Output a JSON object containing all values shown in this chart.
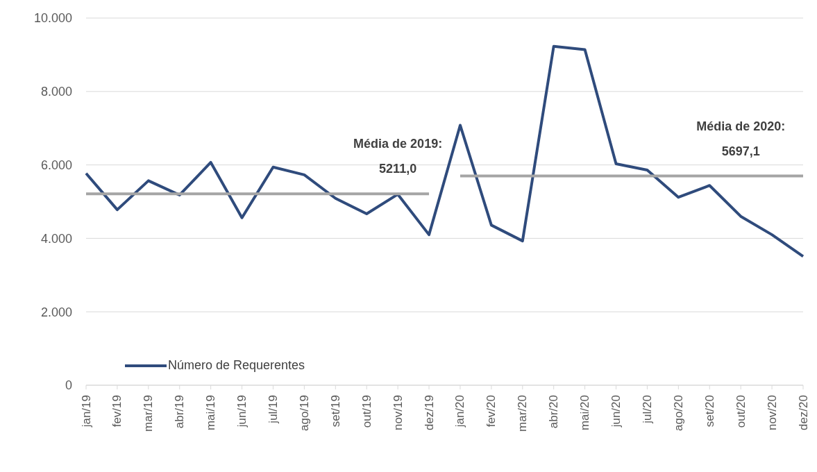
{
  "chart_data": {
    "type": "line",
    "categories": [
      "jan/19",
      "fev/19",
      "mar/19",
      "abr/19",
      "mai/19",
      "jun/19",
      "jul/19",
      "ago/19",
      "set/19",
      "out/19",
      "nov/19",
      "dez/19",
      "jan/20",
      "fev/20",
      "mar/20",
      "abr/20",
      "mai/20",
      "jun/20",
      "jul/20",
      "ago/20",
      "set/20",
      "out/20",
      "nov/20",
      "dez/20"
    ],
    "series": [
      {
        "name": "Número de Requerentes",
        "color": "#2f4b7c",
        "values": [
          5770,
          4780,
          5570,
          5180,
          6070,
          4560,
          5940,
          5730,
          5090,
          4670,
          5200,
          4100,
          7080,
          4360,
          3930,
          9230,
          9140,
          6030,
          5860,
          5120,
          5440,
          4600,
          4100,
          3510
        ]
      },
      {
        "color": "#a5a5a5",
        "values": [
          5211,
          5211,
          5211,
          5211,
          5211,
          5211,
          5211,
          5211,
          5211,
          5211,
          5211,
          5211,
          null,
          null,
          null,
          null,
          null,
          null,
          null,
          null,
          null,
          null,
          null,
          null
        ]
      },
      {
        "color": "#a5a5a5",
        "values": [
          null,
          null,
          null,
          null,
          null,
          null,
          null,
          null,
          null,
          null,
          null,
          null,
          5697.1,
          5697.1,
          5697.1,
          5697.1,
          5697.1,
          5697.1,
          5697.1,
          5697.1,
          5697.1,
          5697.1,
          5697.1,
          5697.1
        ]
      }
    ],
    "ylim": [
      0,
      10000
    ],
    "yticks": [
      0,
      {
        "value": 2000,
        "label": "2.000"
      },
      {
        "value": 4000,
        "label": "4.000"
      },
      {
        "value": 6000,
        "label": "6.000"
      },
      {
        "value": 8000,
        "label": "8.000"
      },
      {
        "value": 10000,
        "label": "10.000"
      }
    ],
    "grid": "y",
    "legend": "bottom left",
    "marker": "none",
    "line_style": "solid",
    "annotations": [
      {
        "text": "Média de 2019:\n5211,0",
        "x": "nov/19",
        "y": 5211
      },
      {
        "text": "Média de 2020:\n5697,1",
        "x": "out/20",
        "y": 5697.1
      }
    ]
  }
}
